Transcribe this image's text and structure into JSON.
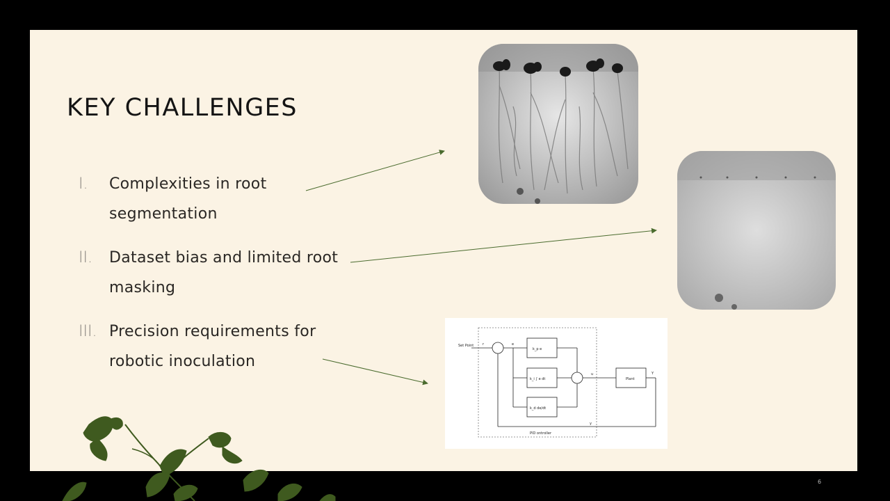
{
  "slide": {
    "title": "KEY CHALLENGES",
    "items": [
      {
        "num": "I.",
        "text": "Complexities in root segmentation"
      },
      {
        "num": "II.",
        "text": "Dataset bias and limited root masking"
      },
      {
        "num": "III.",
        "text": "Precision requirements for robotic inoculation"
      }
    ],
    "page_number": "6"
  },
  "diagram": {
    "set_point": "Set Point",
    "r": "r",
    "e": "e",
    "p_term": "k_p e",
    "i_term": "k_i ∫ e dt",
    "d_term": "k_d de/dt",
    "u": "u",
    "plant": "Plant",
    "y_out": "Y",
    "y_fb": "y",
    "controller": "PID ontroller"
  },
  "colors": {
    "background": "#fbf3e4",
    "frame": "#000000",
    "arrow": "#4a6b2e",
    "plant": "#3f5a1f"
  }
}
